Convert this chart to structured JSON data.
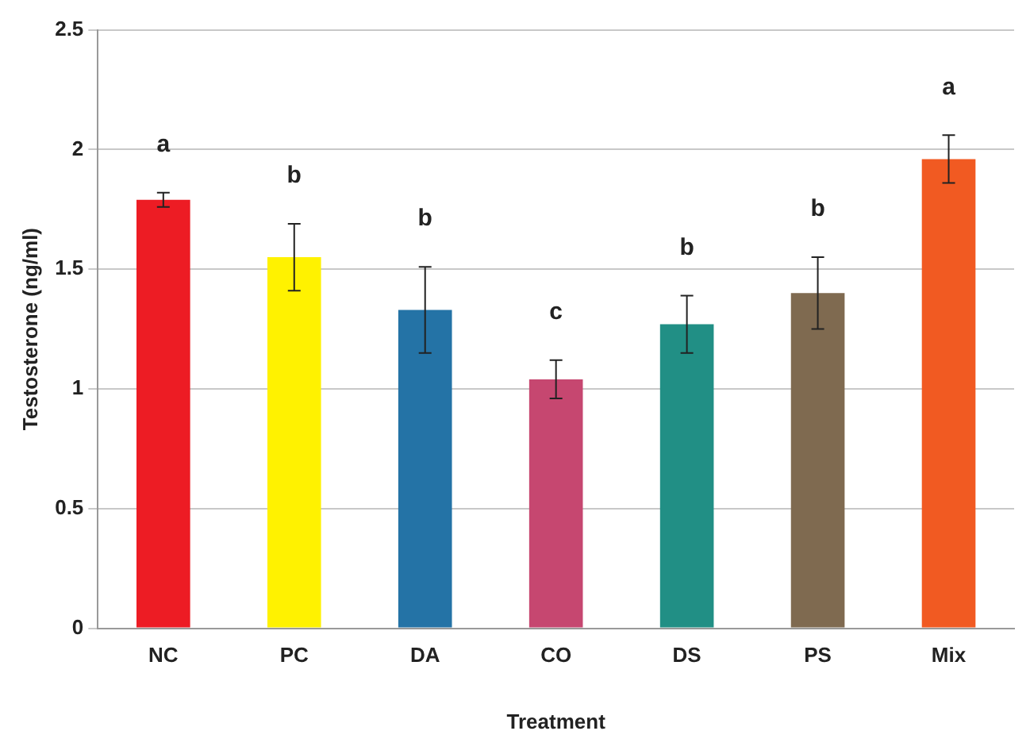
{
  "chart_data": {
    "type": "bar",
    "xlabel": "Treatment",
    "ylabel": "Testosterone (ng/ml)",
    "categories": [
      "NC",
      "PC",
      "DA",
      "CO",
      "DS",
      "PS",
      "Mix"
    ],
    "values": [
      1.79,
      1.55,
      1.33,
      1.04,
      1.27,
      1.4,
      1.96
    ],
    "errors": [
      0.03,
      0.14,
      0.18,
      0.08,
      0.12,
      0.15,
      0.1
    ],
    "colors": [
      "#ed1c24",
      "#fff200",
      "#2473a6",
      "#c64770",
      "#218f85",
      "#7f6a50",
      "#f15a22"
    ],
    "ylim": [
      0,
      2.5
    ],
    "yticks": [
      0,
      0.5,
      1,
      1.5,
      2,
      2.5
    ],
    "grid": "y",
    "legend": false,
    "annotations": [
      "a",
      "b",
      "b",
      "c",
      "b",
      "b",
      "a"
    ]
  }
}
